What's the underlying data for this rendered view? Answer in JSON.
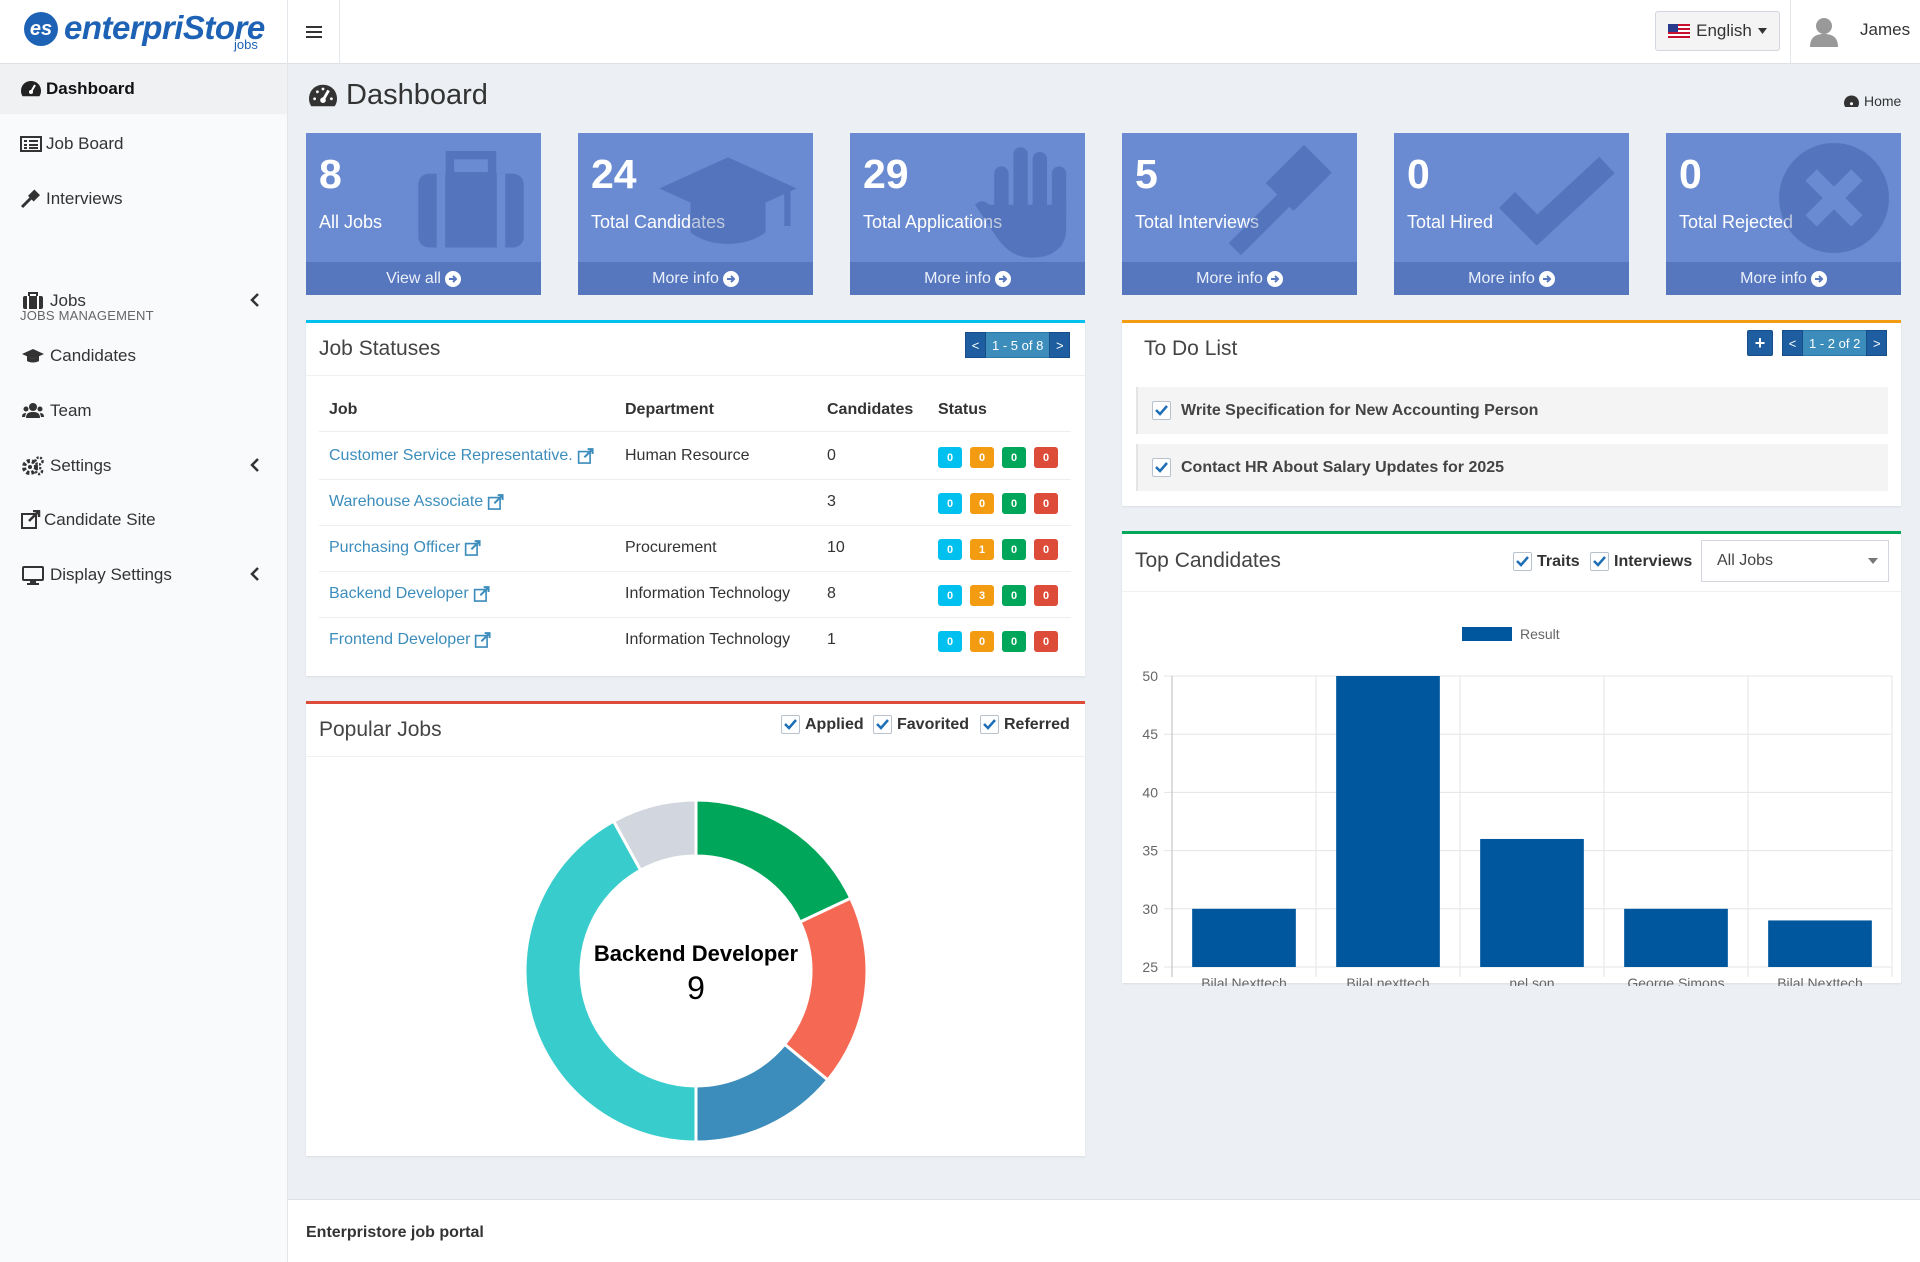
{
  "app": {
    "logo_mark": "es",
    "logo_text": "enterpriStore",
    "logo_sub": "jobs"
  },
  "topbar": {
    "language": "English",
    "user_name": "James"
  },
  "sidebar": {
    "items": [
      {
        "label": "Dashboard"
      },
      {
        "label": "Job Board"
      },
      {
        "label": "Interviews"
      },
      {
        "label": "Jobs"
      },
      {
        "label": "Candidates"
      },
      {
        "label": "Team"
      },
      {
        "label": "Settings"
      },
      {
        "label": "Candidate Site"
      },
      {
        "label": "Display Settings"
      }
    ],
    "section_header": "JOBS MANAGEMENT"
  },
  "page": {
    "title": "Dashboard",
    "breadcrumb": "Home"
  },
  "stats": [
    {
      "value": "8",
      "label": "All Jobs",
      "link": "View all",
      "icon": "briefcase-icon"
    },
    {
      "value": "24",
      "label": "Total Candidates",
      "link": "More info",
      "icon": "graduation-cap-icon"
    },
    {
      "value": "29",
      "label": "Total Applications",
      "link": "More info",
      "icon": "hand-icon"
    },
    {
      "value": "5",
      "label": "Total Interviews",
      "link": "More info",
      "icon": "gavel-icon"
    },
    {
      "value": "0",
      "label": "Total Hired",
      "link": "More info",
      "icon": "checkmark-icon"
    },
    {
      "value": "0",
      "label": "Total Rejected",
      "link": "More info",
      "icon": "circle-x-icon"
    }
  ],
  "job_statuses": {
    "title": "Job Statuses",
    "pager": {
      "prev": "<",
      "text": "1 - 5 of 8",
      "next": ">"
    },
    "columns": [
      "Job",
      "Department",
      "Candidates",
      "Status"
    ],
    "rows": [
      {
        "job": "Customer Service Representative.",
        "department": "Human Resource",
        "candidates": "0",
        "statuses": [
          "0",
          "0",
          "0",
          "0"
        ]
      },
      {
        "job": "Warehouse Associate",
        "department": "",
        "candidates": "3",
        "statuses": [
          "0",
          "0",
          "0",
          "0"
        ]
      },
      {
        "job": "Purchasing Officer",
        "department": "Procurement",
        "candidates": "10",
        "statuses": [
          "0",
          "1",
          "0",
          "0"
        ]
      },
      {
        "job": "Backend Developer",
        "department": "Information Technology",
        "candidates": "8",
        "statuses": [
          "0",
          "3",
          "0",
          "0"
        ]
      },
      {
        "job": "Frontend Developer",
        "department": "Information Technology",
        "candidates": "1",
        "statuses": [
          "0",
          "0",
          "0",
          "0"
        ]
      }
    ]
  },
  "todo": {
    "title": "To Do List",
    "pager": {
      "add": "+",
      "prev": "<",
      "text": "1 - 2 of 2",
      "next": ">"
    },
    "items": [
      {
        "text": "Write Specification for New Accounting Person",
        "checked": true
      },
      {
        "text": "Contact HR About Salary Updates for 2025",
        "checked": true
      }
    ]
  },
  "popular_jobs": {
    "title": "Popular Jobs",
    "filters": [
      "Applied",
      "Favorited",
      "Referred"
    ],
    "center_label": "Backend Developer",
    "center_value": "9",
    "colors": [
      "#00a65a",
      "#f56954",
      "#3c8dbc",
      "#39cccc",
      "#d2d6de"
    ]
  },
  "top_candidates": {
    "title": "Top Candidates",
    "filters": [
      "Traits",
      "Interviews"
    ],
    "select_value": "All Jobs"
  },
  "chart_data": [
    {
      "type": "pie",
      "title": "",
      "center_label": "Backend Developer",
      "center_value": 9,
      "slices": [
        {
          "value": 9,
          "color": "#00a65a"
        },
        {
          "value": 9,
          "color": "#f56954"
        },
        {
          "value": 7,
          "color": "#3c8dbc"
        },
        {
          "value": 21,
          "color": "#39cccc"
        },
        {
          "value": 4,
          "color": "#d2d6de"
        }
      ]
    },
    {
      "type": "bar",
      "title": "",
      "categories": [
        "Bilal Nexttech",
        "Bilal nexttech",
        "nel son",
        "George Simons",
        "Bilal Nexttech"
      ],
      "series": [
        {
          "name": "Result",
          "values": [
            30,
            50,
            36,
            30,
            29
          ],
          "color": "#00579e"
        }
      ],
      "ylim": [
        25,
        50
      ],
      "yticks": [
        25,
        30,
        35,
        40,
        45,
        50
      ],
      "legend": "top",
      "grid": true
    }
  ],
  "footer": {
    "text": "Enterpristore job portal"
  }
}
